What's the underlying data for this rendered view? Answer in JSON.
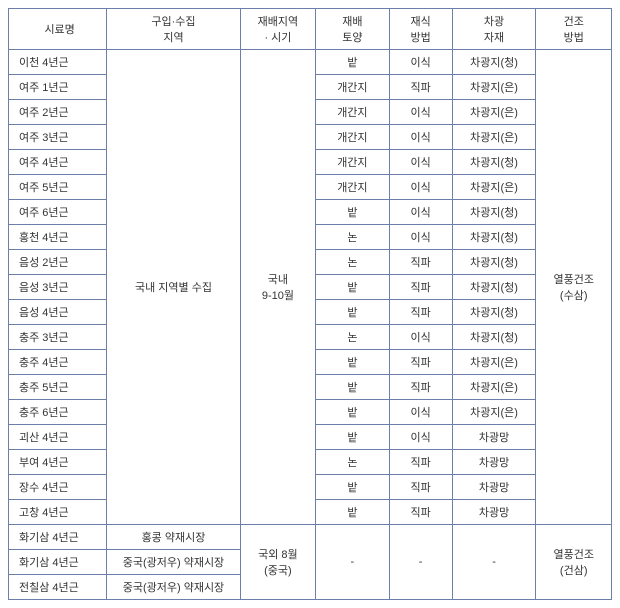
{
  "headers": [
    "시료명",
    "구입·수집\n지역",
    "재배지역\n· 시기",
    "재배\n토양",
    "재식\n방법",
    "차광\n자재",
    "건조\n방법"
  ],
  "group1": {
    "region": "국내 지역별 수집",
    "period": "국내\n9-10월",
    "dry": "열풍건조\n(수삼)",
    "rows": [
      {
        "n": "이천 4년근",
        "s": "밭",
        "m": "이식",
        "sh": "차광지(청)"
      },
      {
        "n": "여주 1년근",
        "s": "개간지",
        "m": "직파",
        "sh": "차광지(은)"
      },
      {
        "n": "여주 2년근",
        "s": "개간지",
        "m": "이식",
        "sh": "차광지(은)"
      },
      {
        "n": "여주 3년근",
        "s": "개간지",
        "m": "이식",
        "sh": "차광지(은)"
      },
      {
        "n": "여주 4년근",
        "s": "개간지",
        "m": "이식",
        "sh": "차광지(청)"
      },
      {
        "n": "여주 5년근",
        "s": "개간지",
        "m": "이식",
        "sh": "차광지(은)"
      },
      {
        "n": "여주 6년근",
        "s": "밭",
        "m": "이식",
        "sh": "차광지(청)"
      },
      {
        "n": "홍천 4년근",
        "s": "논",
        "m": "이식",
        "sh": "차광지(청)"
      },
      {
        "n": "음성 2년근",
        "s": "논",
        "m": "직파",
        "sh": "차광지(청)"
      },
      {
        "n": "음성 3년근",
        "s": "밭",
        "m": "직파",
        "sh": "차광지(청)"
      },
      {
        "n": "음성 4년근",
        "s": "밭",
        "m": "직파",
        "sh": "차광지(청)"
      },
      {
        "n": "충주 3년근",
        "s": "논",
        "m": "이식",
        "sh": "차광지(청)"
      },
      {
        "n": "충주 4년근",
        "s": "밭",
        "m": "직파",
        "sh": "차광지(은)"
      },
      {
        "n": "충주 5년근",
        "s": "밭",
        "m": "직파",
        "sh": "차광지(은)"
      },
      {
        "n": "충주 6년근",
        "s": "밭",
        "m": "이식",
        "sh": "차광지(은)"
      },
      {
        "n": "괴산 4년근",
        "s": "밭",
        "m": "이식",
        "sh": "차광망"
      },
      {
        "n": "부여 4년근",
        "s": "논",
        "m": "직파",
        "sh": "차광망"
      },
      {
        "n": "장수 4년근",
        "s": "밭",
        "m": "직파",
        "sh": "차광망"
      },
      {
        "n": "고창 4년근",
        "s": "밭",
        "m": "직파",
        "sh": "차광망"
      }
    ]
  },
  "group2": {
    "period": "국외 8월\n(중국)",
    "dry": "열풍건조\n(건삼)",
    "dash": "-",
    "rows": [
      {
        "n": "화기삼 4년근",
        "r": "홍콩 약재시장"
      },
      {
        "n": "화기삼 4년근",
        "r": "중국(광저우) 약재시장"
      },
      {
        "n": "전칠삼 4년근",
        "r": "중국(광저우) 약재시장"
      }
    ]
  }
}
